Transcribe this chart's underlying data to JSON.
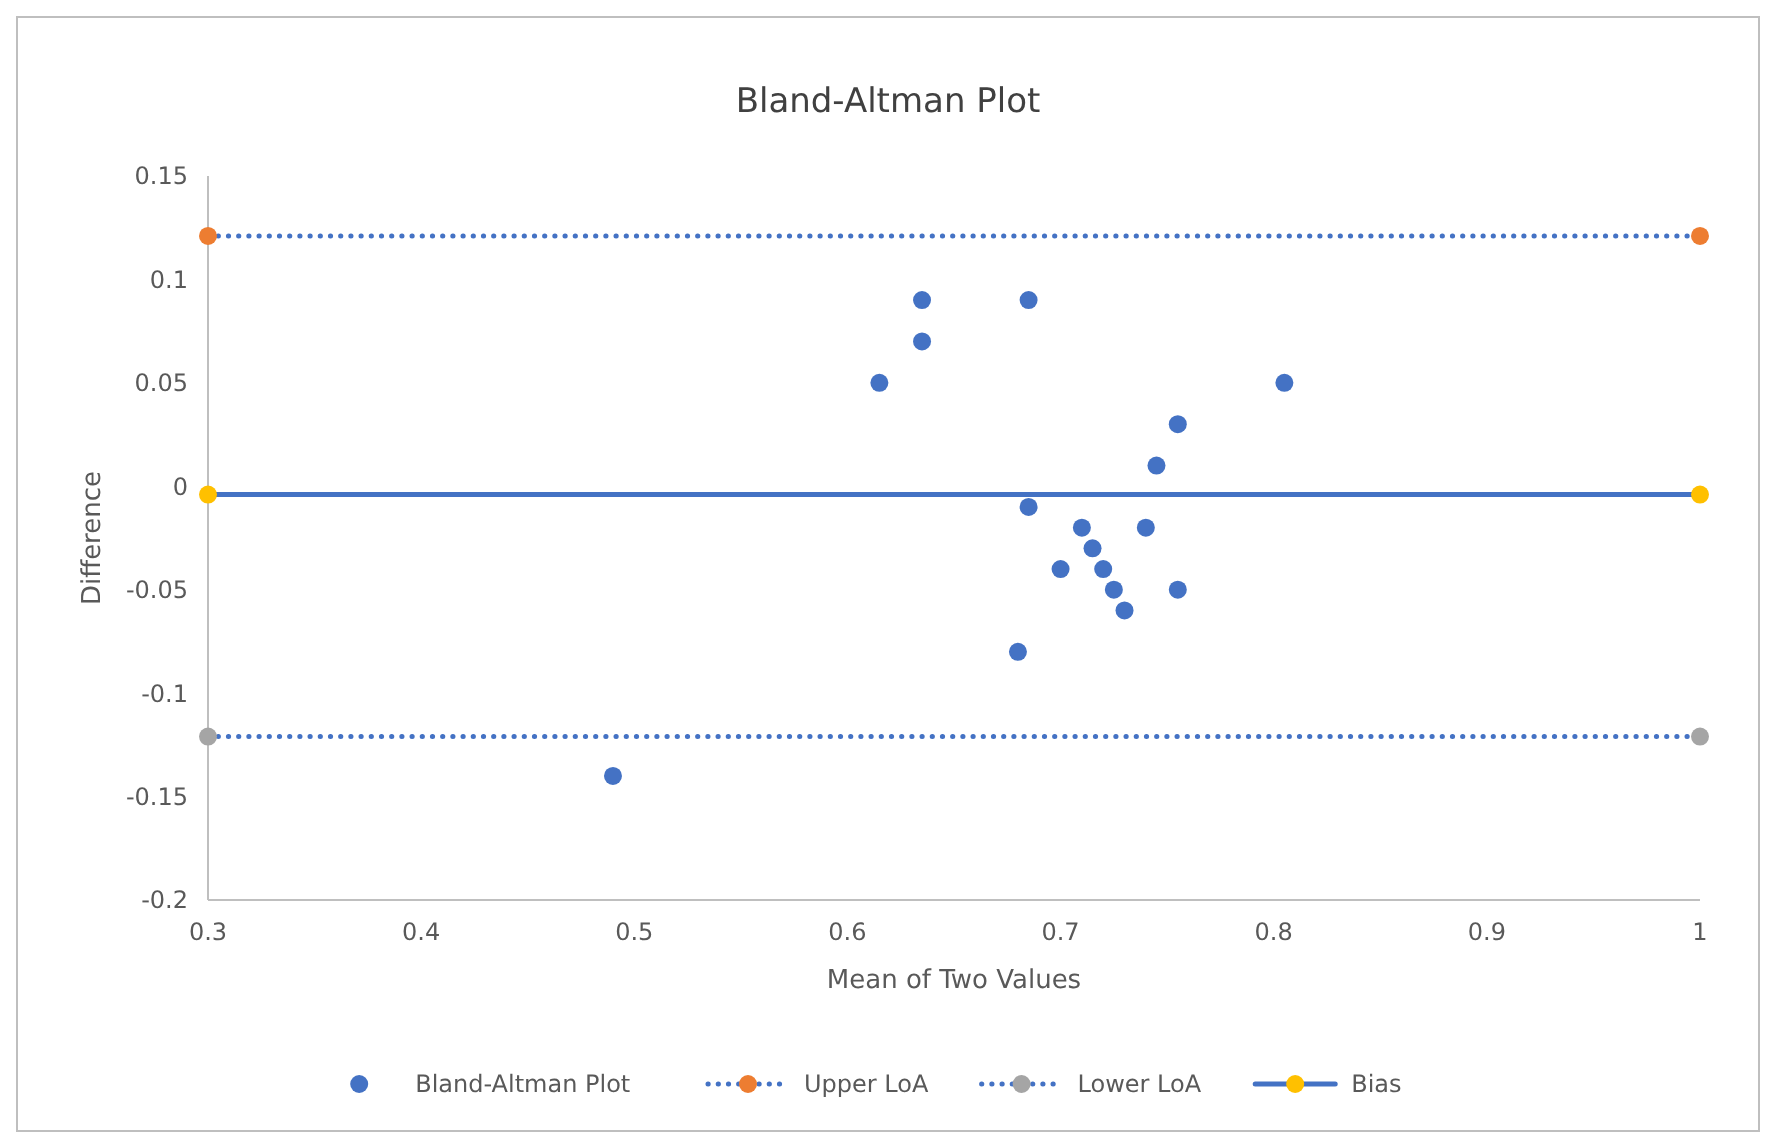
{
  "chart_data": {
    "type": "scatter",
    "title": "Bland-Altman Plot",
    "xlabel": "Mean of Two Values",
    "ylabel": "Difference",
    "xlim": [
      0.3,
      1
    ],
    "xticks": [
      0.3,
      0.4,
      0.5,
      0.6,
      0.7,
      0.8,
      0.9,
      1
    ],
    "ylim": [
      -0.2,
      0.15
    ],
    "yticks": [
      -0.2,
      -0.15,
      -0.1,
      -0.05,
      0,
      0.05,
      0.1,
      0.15
    ],
    "grid": false,
    "legend": "bottom",
    "marker": "circle",
    "series": [
      {
        "name": "Bland-Altman Plot",
        "color": "#4472c4",
        "x": [
          0.49,
          0.615,
          0.635,
          0.635,
          0.685,
          0.685,
          0.68,
          0.7,
          0.71,
          0.715,
          0.72,
          0.725,
          0.73,
          0.74,
          0.745,
          0.755,
          0.755,
          0.805
        ],
        "values": [
          -0.14,
          0.05,
          0.09,
          0.07,
          0.09,
          -0.01,
          -0.08,
          -0.04,
          -0.02,
          -0.03,
          -0.04,
          -0.05,
          -0.06,
          -0.02,
          0.01,
          0.03,
          -0.05,
          0.05
        ]
      },
      {
        "name": "Upper LoA",
        "type": "line",
        "line_style": "dotted",
        "color": "#4472c4",
        "colors": [
          "#ed7d31",
          "#ed7d31"
        ],
        "x": [
          0.3,
          1
        ],
        "values": [
          0.121,
          0.121
        ]
      },
      {
        "name": "Lower LoA",
        "type": "line",
        "line_style": "dotted",
        "color": "#4472c4",
        "colors": [
          "#a5a5a5",
          "#a5a5a5"
        ],
        "x": [
          0.3,
          1
        ],
        "values": [
          -0.121,
          -0.121
        ]
      },
      {
        "name": "Bias",
        "type": "line",
        "line_style": "solid",
        "color": "#4472c4",
        "colors": [
          "#ffc000",
          "#ffc000"
        ],
        "x": [
          0.3,
          1
        ],
        "values": [
          -0.004,
          -0.004
        ]
      }
    ]
  }
}
